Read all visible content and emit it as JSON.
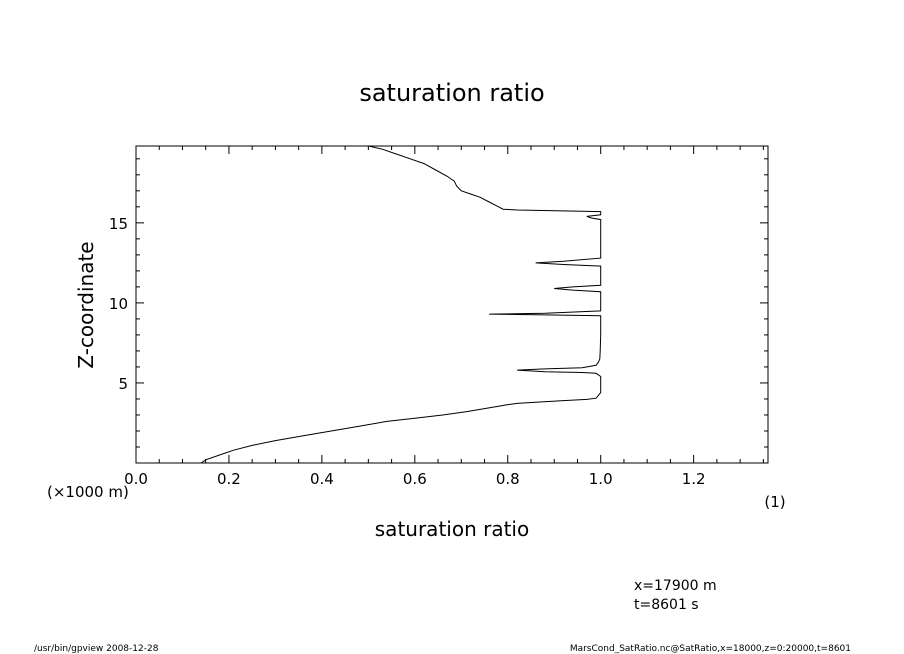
{
  "chart_data": {
    "type": "line",
    "title": "saturation ratio",
    "xlabel": "saturation ratio",
    "ylabel": "Z-coordinate",
    "xlim": [
      0.0,
      1.36
    ],
    "ylim": [
      0.0,
      19.8
    ],
    "x_ticks": [
      0.0,
      0.2,
      0.4,
      0.6,
      0.8,
      1.0,
      1.2
    ],
    "x_tick_labels": [
      "0.0",
      "0.2",
      "0.4",
      "0.6",
      "0.8",
      "1.0",
      "1.2"
    ],
    "y_ticks": [
      5,
      10,
      15
    ],
    "y_tick_labels": [
      "5",
      "10",
      "15"
    ],
    "x_unit_label": "(1)",
    "y_unit_label": "(×1000 m)",
    "grid": false,
    "series": [
      {
        "x": [
          0.14,
          0.15,
          0.18,
          0.21,
          0.25,
          0.3,
          0.36,
          0.42,
          0.48,
          0.54,
          0.6,
          0.66,
          0.71,
          0.75,
          0.78,
          0.8,
          0.82,
          0.86,
          0.92,
          0.97,
          0.99,
          1.0,
          1.0,
          1.0,
          0.99,
          0.96,
          0.88,
          0.82,
          0.88,
          0.96,
          0.99,
          0.995,
          0.998,
          0.999,
          1.0,
          1.0,
          1.0,
          1.0,
          0.88,
          0.76,
          0.88,
          1.0,
          1.0,
          1.0,
          0.94,
          0.9,
          0.94,
          1.0,
          1.0,
          1.0,
          0.92,
          0.86,
          0.92,
          1.0,
          1.0,
          1.0,
          0.98,
          0.97,
          1.0,
          1.0,
          0.82,
          0.79,
          0.78,
          0.76,
          0.74,
          0.72,
          0.7,
          0.69,
          0.685,
          0.68,
          0.67,
          0.645,
          0.62,
          0.59,
          0.56,
          0.53,
          0.5
        ],
        "y": [
          0.0,
          0.2,
          0.5,
          0.8,
          1.1,
          1.4,
          1.7,
          2.0,
          2.3,
          2.6,
          2.8,
          3.0,
          3.2,
          3.4,
          3.55,
          3.65,
          3.72,
          3.8,
          3.9,
          3.97,
          4.05,
          4.4,
          5.0,
          5.4,
          5.6,
          5.65,
          5.7,
          5.8,
          5.88,
          5.95,
          6.1,
          6.3,
          6.5,
          7.0,
          8.0,
          9.0,
          9.1,
          9.2,
          9.25,
          9.3,
          9.35,
          9.5,
          10.0,
          10.7,
          10.8,
          10.9,
          11.0,
          11.1,
          12.0,
          12.3,
          12.4,
          12.5,
          12.6,
          12.8,
          14.0,
          15.2,
          15.3,
          15.4,
          15.5,
          15.7,
          15.8,
          15.85,
          16.0,
          16.3,
          16.6,
          16.8,
          17.0,
          17.3,
          17.6,
          17.7,
          17.9,
          18.3,
          18.7,
          19.0,
          19.3,
          19.6,
          19.8
        ]
      }
    ]
  },
  "annotations": {
    "x_position": "x=17900 m",
    "time": "t=8601 s"
  },
  "footer": {
    "program": "/usr/bin/gpview   2008-12-28",
    "source": "MarsCond_SatRatio.nc@SatRatio,x=18000,z=0:20000,t=8601"
  }
}
